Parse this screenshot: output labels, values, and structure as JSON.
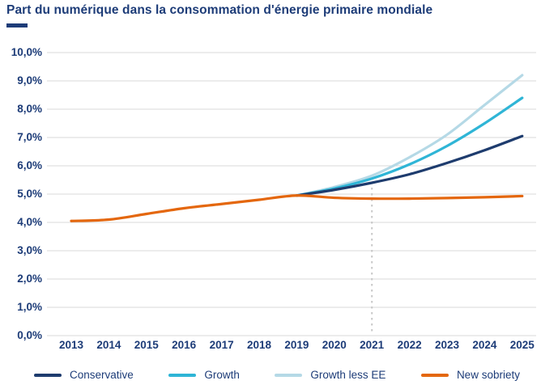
{
  "title": "Part du numérique dans la consommation d'énergie primaire mondiale",
  "colors": {
    "title_text": "#1d3c78",
    "axis_text": "#1d3c78",
    "gridline": "#d9d9d9",
    "forecast_divider": "#c8c8c8",
    "background": "#ffffff"
  },
  "chart_data": {
    "type": "line",
    "title": "Part du numérique dans la consommation d'énergie primaire mondiale",
    "xlabel": "",
    "ylabel": "",
    "x": [
      2013,
      2014,
      2015,
      2016,
      2017,
      2018,
      2019,
      2020,
      2021,
      2022,
      2023,
      2024,
      2025
    ],
    "x_tick_labels": [
      "2013",
      "2014",
      "2015",
      "2016",
      "2017",
      "2018",
      "2019",
      "2020",
      "2021",
      "2022",
      "2023",
      "2024",
      "2025"
    ],
    "ylim": [
      0,
      10
    ],
    "y_tick_step": 1,
    "y_tick_labels": [
      "0,0%",
      "1,0%",
      "2,0%",
      "3,0%",
      "4,0%",
      "5,0%",
      "6,0%",
      "7,0%",
      "8,0%",
      "9,0%",
      "10,0%"
    ],
    "grid": "horizontal",
    "forecast_divider_x": 2021,
    "legend_position": "bottom",
    "series": [
      {
        "name": "Conservative",
        "color": "#1e3c6e",
        "values": [
          null,
          null,
          null,
          null,
          null,
          null,
          4.95,
          5.15,
          5.4,
          5.7,
          6.1,
          6.55,
          7.05
        ]
      },
      {
        "name": "Growth",
        "color": "#2fb5d6",
        "values": [
          null,
          null,
          null,
          null,
          null,
          null,
          4.95,
          5.2,
          5.55,
          6.05,
          6.7,
          7.5,
          8.4
        ]
      },
      {
        "name": "Growth less EE",
        "color": "#b5d9e6",
        "values": [
          null,
          null,
          null,
          null,
          null,
          null,
          4.95,
          5.25,
          5.65,
          6.3,
          7.1,
          8.15,
          9.2
        ]
      },
      {
        "name": "New sobriety",
        "color": "#e4670e",
        "values": [
          4.05,
          4.1,
          4.3,
          4.5,
          4.65,
          4.8,
          4.95,
          4.87,
          4.84,
          4.84,
          4.86,
          4.89,
          4.93
        ]
      }
    ],
    "draw_order": [
      2,
      1,
      0,
      3
    ]
  }
}
